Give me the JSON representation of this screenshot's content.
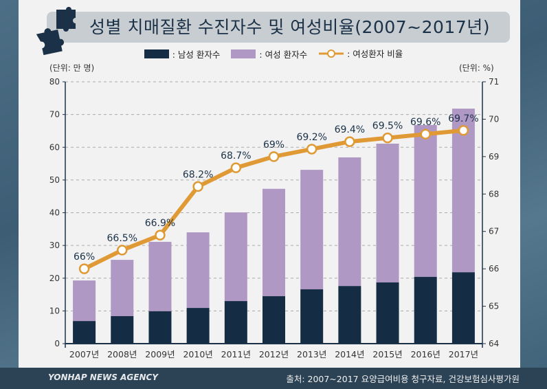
{
  "title": "성별 치매질환 수진자수 및 여성비율(2007~2017년)",
  "legend": {
    "male": ": 남성 환자수",
    "female": ": 여성 환자수",
    "ratio": ": 여성환자 비율"
  },
  "left_unit": "(단위: 만 명)",
  "right_unit": "(단위: %)",
  "footer": {
    "brand": "YONHAP NEWS AGENCY",
    "source": "출처: 2007~2017 요양급여비용 청구자료, 건강보험심사평가원"
  },
  "colors": {
    "male": "#142d45",
    "female": "#b098c4",
    "ratio": "#e09a35",
    "background": "#3f6178"
  },
  "chart_data": {
    "type": "bar+line",
    "categories": [
      "2007년",
      "2008년",
      "2009년",
      "2010년",
      "2011년",
      "2012년",
      "2013년",
      "2014년",
      "2015년",
      "2016년",
      "2017년"
    ],
    "series": [
      {
        "name": "남성 환자수",
        "type": "stacked-bar",
        "axis": "left",
        "values": [
          6.9,
          8.4,
          9.9,
          10.9,
          13.0,
          14.5,
          16.6,
          17.6,
          18.7,
          20.4,
          21.8
        ]
      },
      {
        "name": "여성 환자수",
        "type": "stacked-bar",
        "axis": "left",
        "values": [
          12.4,
          17.2,
          21.2,
          23.1,
          27.1,
          32.8,
          36.5,
          39.3,
          42.4,
          46.4,
          50.0
        ]
      },
      {
        "name": "여성환자 비율",
        "type": "line",
        "axis": "right",
        "values": [
          66,
          66.5,
          66.9,
          68.2,
          68.7,
          69,
          69.2,
          69.4,
          69.5,
          69.6,
          69.7
        ],
        "labels": [
          "66%",
          "66.5%",
          "66.9%",
          "68.2%",
          "68.7%",
          "69%",
          "69.2%",
          "69.4%",
          "69.5%",
          "69.6%",
          "69.7%"
        ]
      }
    ],
    "left_axis": {
      "range": [
        0,
        80
      ],
      "ticks": [
        "0",
        "10",
        "20",
        "30",
        "40",
        "50",
        "60",
        "70",
        "80"
      ]
    },
    "right_axis": {
      "range": [
        64,
        71
      ],
      "ticks": [
        "64",
        "65",
        "66",
        "67",
        "68",
        "69",
        "70",
        "71"
      ]
    },
    "grid": "horizontal dashed",
    "legend_position": "top"
  }
}
